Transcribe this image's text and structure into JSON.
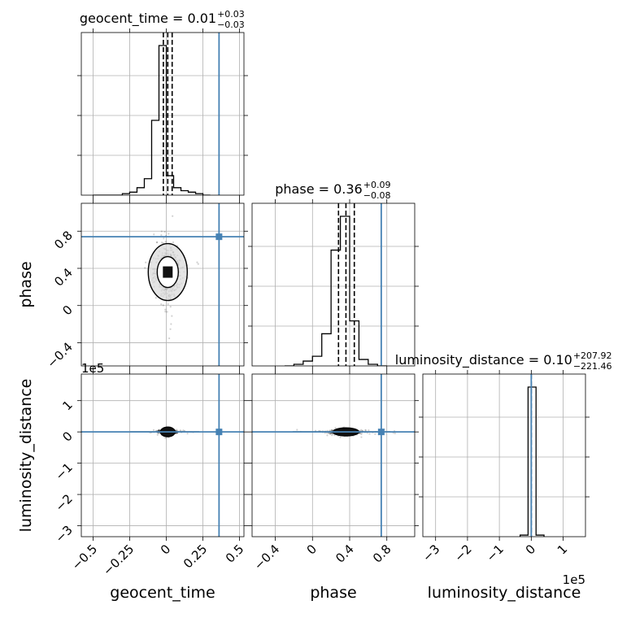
{
  "chart_data": {
    "type": "corner",
    "parameters": [
      "geocent_time",
      "phase",
      "luminosity_distance"
    ],
    "truths": {
      "geocent_time": 0.36,
      "phase": 0.74,
      "luminosity_distance": 0
    },
    "panels": [
      {
        "kind": "hist",
        "param": "geocent_time",
        "title_main": "geocent_time = 0.01",
        "title_sup": "+0.03",
        "title_sub": "−0.03",
        "xlim": [
          -0.58,
          0.53
        ],
        "quantiles": [
          -0.02,
          0.01,
          0.04
        ],
        "bins": {
          "edges": [
            -0.5,
            -0.45,
            -0.4,
            -0.35,
            -0.3,
            -0.25,
            -0.2,
            -0.15,
            -0.1,
            -0.05,
            0.0,
            0.05,
            0.1,
            0.15,
            0.2,
            0.25,
            0.3
          ],
          "heights": [
            0,
            0,
            0,
            0,
            0.01,
            0.02,
            0.05,
            0.11,
            0.5,
            1.0,
            0.13,
            0.05,
            0.03,
            0.02,
            0.01,
            0,
            0
          ]
        },
        "xticks": [
          -0.5,
          -0.25,
          0.0,
          0.25,
          0.5
        ]
      },
      {
        "kind": "hist",
        "param": "phase",
        "title_main": "phase = 0.36",
        "title_sup": "+0.09",
        "title_sub": "−0.08",
        "xlim": [
          -0.65,
          1.1
        ],
        "quantiles": [
          0.28,
          0.36,
          0.45
        ],
        "bins": {
          "edges": [
            -0.3,
            -0.2,
            -0.1,
            0.0,
            0.1,
            0.2,
            0.3,
            0.4,
            0.5,
            0.6,
            0.7,
            0.8
          ],
          "heights": [
            0,
            0.01,
            0.03,
            0.06,
            0.2,
            0.72,
            0.93,
            0.28,
            0.04,
            0.01,
            0
          ]
        },
        "xticks": [
          -0.4,
          0.0,
          0.4,
          0.8
        ]
      },
      {
        "kind": "hist",
        "param": "luminosity_distance",
        "title_main": "luminosity_distance = 0.10",
        "title_sup": "+207.92",
        "title_sub": "−221.46",
        "xlim": [
          -3.4,
          1.7
        ],
        "quantiles": [
          0.0
        ],
        "bins": {
          "edges": [
            -0.35,
            -0.1,
            0.15,
            0.4
          ],
          "heights": [
            0.01,
            0.95,
            0.01
          ]
        },
        "xticks": [
          -3,
          -2,
          -1,
          0,
          1
        ],
        "offset_label": "1e5"
      },
      {
        "kind": "scatter2d",
        "xparam": "geocent_time",
        "yparam": "phase",
        "xlim": [
          -0.58,
          0.53
        ],
        "ylim": [
          -0.65,
          1.1
        ],
        "center": [
          0.01,
          0.36
        ],
        "spread": [
          0.03,
          0.09
        ],
        "yticks": [
          -0.4,
          0.0,
          0.4,
          0.8
        ]
      },
      {
        "kind": "scatter2d",
        "xparam": "geocent_time",
        "yparam": "luminosity_distance",
        "xlim": [
          -0.58,
          0.53
        ],
        "ylim": [
          -3.35,
          1.85
        ],
        "center": [
          0.01,
          0.0
        ],
        "spread": [
          0.03,
          0.03
        ],
        "yticks": [
          -3,
          -2,
          -1,
          0,
          1
        ],
        "offset_label": "1e5"
      },
      {
        "kind": "scatter2d",
        "xparam": "phase",
        "yparam": "luminosity_distance",
        "xlim": [
          -0.65,
          1.1
        ],
        "ylim": [
          -3.35,
          1.85
        ],
        "center": [
          0.36,
          0.0
        ],
        "spread": [
          0.09,
          0.03
        ]
      }
    ],
    "axis_labels": {
      "x": [
        "geocent_time",
        "phase",
        "luminosity_distance"
      ],
      "y": [
        "phase",
        "luminosity_distance"
      ]
    },
    "colors": {
      "hist": "#000000",
      "truth": "#4682b4",
      "grid": "#b0b0b0"
    },
    "grid": true
  }
}
